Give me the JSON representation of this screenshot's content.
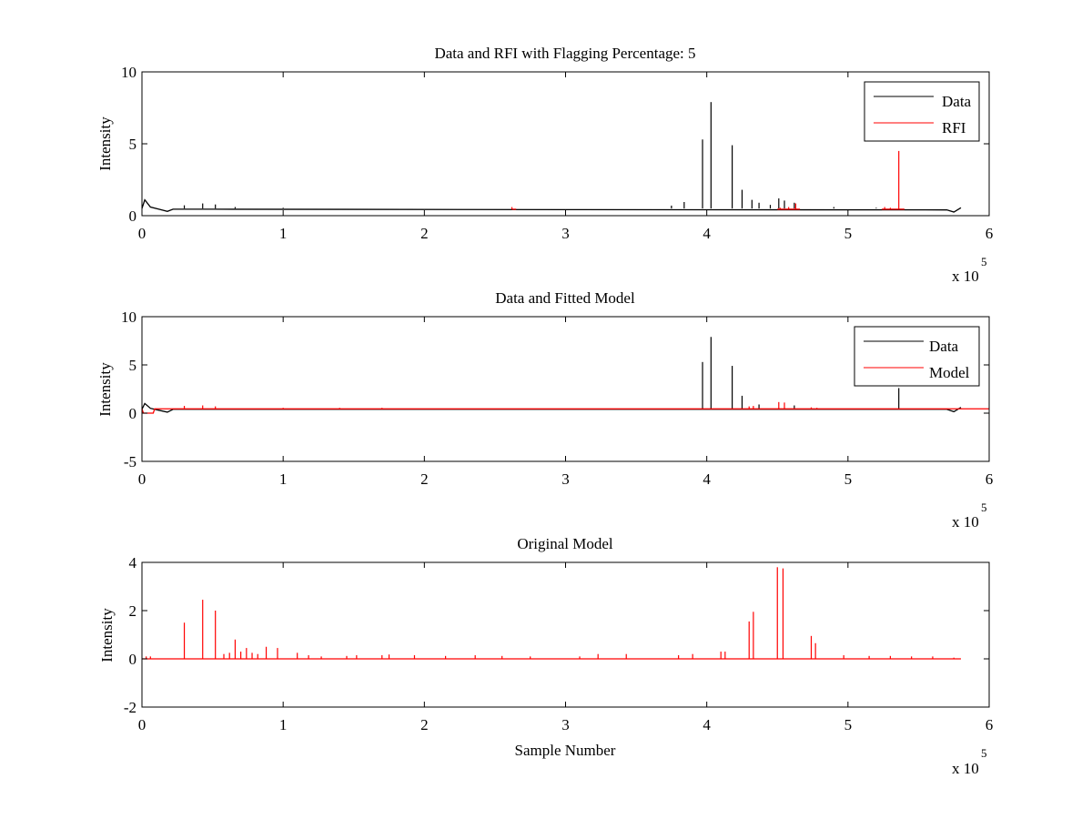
{
  "colors": {
    "data": "#000000",
    "rfi": "#ff0000",
    "model": "#ff0000",
    "axis": "#000000",
    "background": "#ffffff"
  },
  "chart_data": [
    {
      "type": "line",
      "title": "Data and RFI with Flagging Percentage: 5",
      "xlabel": "",
      "ylabel": "Intensity",
      "xlim": [
        0,
        600000
      ],
      "ylim": [
        0,
        10
      ],
      "xticks": [
        0,
        100000,
        200000,
        300000,
        400000,
        500000,
        600000
      ],
      "xtick_labels": [
        "0",
        "1",
        "2",
        "3",
        "4",
        "5",
        "6"
      ],
      "yticks": [
        0,
        5,
        10
      ],
      "ytick_labels": [
        "0",
        "5",
        "10"
      ],
      "x_exponent": {
        "base": "x 10",
        "power": "5"
      },
      "grid": false,
      "legend": "top-right",
      "series": [
        {
          "name": "Data",
          "color": "#000000",
          "baseline": 0.5,
          "drift": [
            [
              0,
              0.5
            ],
            [
              2000,
              1.1
            ],
            [
              6000,
              0.6
            ],
            [
              12000,
              0.45
            ],
            [
              18000,
              0.3
            ],
            [
              22000,
              0.45
            ],
            [
              50000,
              0.45
            ],
            [
              300000,
              0.42
            ],
            [
              570000,
              0.4
            ],
            [
              575000,
              0.25
            ],
            [
              580000,
              0.55
            ]
          ],
          "spikes": [
            [
              30000,
              0.72
            ],
            [
              43000,
              0.85
            ],
            [
              52000,
              0.78
            ],
            [
              66000,
              0.6
            ],
            [
              100000,
              0.55
            ],
            [
              190000,
              0.5
            ],
            [
              375000,
              0.7
            ],
            [
              384000,
              0.95
            ],
            [
              397000,
              5.3
            ],
            [
              403000,
              7.9
            ],
            [
              418000,
              4.9
            ],
            [
              425000,
              1.8
            ],
            [
              432000,
              1.1
            ],
            [
              437000,
              0.9
            ],
            [
              445000,
              0.75
            ],
            [
              451000,
              1.2
            ],
            [
              455000,
              1.05
            ],
            [
              462000,
              0.9
            ],
            [
              490000,
              0.6
            ],
            [
              520000,
              0.55
            ],
            [
              560000,
              0.5
            ]
          ]
        },
        {
          "name": "RFI",
          "color": "#ff0000",
          "baseline": 0.45,
          "drift": [],
          "spikes": [
            [
              262000,
              0.6
            ],
            [
              452000,
              0.55
            ],
            [
              458000,
              0.6
            ],
            [
              463000,
              0.85
            ],
            [
              526000,
              0.6
            ],
            [
              530000,
              0.55
            ],
            [
              536000,
              4.5
            ]
          ]
        }
      ]
    },
    {
      "type": "line",
      "title": "Data and Fitted Model",
      "xlabel": "",
      "ylabel": "Intensity",
      "xlim": [
        0,
        600000
      ],
      "ylim": [
        -5,
        10
      ],
      "xticks": [
        0,
        100000,
        200000,
        300000,
        400000,
        500000,
        600000
      ],
      "xtick_labels": [
        "0",
        "1",
        "2",
        "3",
        "4",
        "5",
        "6"
      ],
      "yticks": [
        -5,
        0,
        5,
        10
      ],
      "ytick_labels": [
        "-5",
        "0",
        "5",
        "10"
      ],
      "x_exponent": {
        "base": "x 10",
        "power": "5"
      },
      "grid": false,
      "legend": "top-right",
      "series": [
        {
          "name": "Data",
          "color": "#000000",
          "baseline": 0.4,
          "drift": [
            [
              0,
              0.4
            ],
            [
              2000,
              1.0
            ],
            [
              6000,
              0.5
            ],
            [
              12000,
              0.3
            ],
            [
              18000,
              0.1
            ],
            [
              22000,
              0.4
            ],
            [
              570000,
              0.4
            ],
            [
              575000,
              0.15
            ],
            [
              580000,
              0.6
            ]
          ],
          "spikes": [
            [
              397000,
              5.3
            ],
            [
              403000,
              7.9
            ],
            [
              418000,
              4.9
            ],
            [
              425000,
              1.8
            ],
            [
              437000,
              0.9
            ],
            [
              462000,
              0.8
            ],
            [
              536000,
              2.6
            ]
          ]
        },
        {
          "name": "Model",
          "color": "#ff0000",
          "baseline": 0.45,
          "drift": [
            [
              0,
              0.45
            ],
            [
              1000,
              0.0
            ],
            [
              8000,
              0.0
            ],
            [
              9000,
              0.45
            ],
            [
              600000,
              0.45
            ]
          ],
          "spikes": [
            [
              30000,
              0.75
            ],
            [
              43000,
              0.8
            ],
            [
              52000,
              0.7
            ],
            [
              100000,
              0.55
            ],
            [
              140000,
              0.55
            ],
            [
              170000,
              0.55
            ],
            [
              430000,
              0.7
            ],
            [
              433000,
              0.75
            ],
            [
              451000,
              1.15
            ],
            [
              455000,
              1.1
            ],
            [
              474000,
              0.6
            ],
            [
              478000,
              0.55
            ]
          ]
        }
      ]
    },
    {
      "type": "line",
      "title": "Original Model",
      "xlabel": "Sample Number",
      "ylabel": "Intensity",
      "xlim": [
        0,
        600000
      ],
      "ylim": [
        -2,
        4
      ],
      "xticks": [
        0,
        100000,
        200000,
        300000,
        400000,
        500000,
        600000
      ],
      "xtick_labels": [
        "0",
        "1",
        "2",
        "3",
        "4",
        "5",
        "6"
      ],
      "yticks": [
        -2,
        0,
        2,
        4
      ],
      "ytick_labels": [
        "-2",
        "0",
        "2",
        "4"
      ],
      "x_exponent": {
        "base": "x 10",
        "power": "5"
      },
      "grid": false,
      "legend": "",
      "series": [
        {
          "color": "#ff0000",
          "baseline": 0.0,
          "drift": [],
          "spikes": [
            [
              3000,
              0.1
            ],
            [
              6000,
              0.1
            ],
            [
              30000,
              1.5
            ],
            [
              43000,
              2.45
            ],
            [
              52000,
              2.0
            ],
            [
              58000,
              0.2
            ],
            [
              62000,
              0.25
            ],
            [
              66000,
              0.8
            ],
            [
              70000,
              0.3
            ],
            [
              74000,
              0.45
            ],
            [
              78000,
              0.25
            ],
            [
              82000,
              0.2
            ],
            [
              88000,
              0.5
            ],
            [
              96000,
              0.45
            ],
            [
              110000,
              0.25
            ],
            [
              118000,
              0.15
            ],
            [
              127000,
              0.1
            ],
            [
              145000,
              0.12
            ],
            [
              152000,
              0.15
            ],
            [
              170000,
              0.15
            ],
            [
              175000,
              0.18
            ],
            [
              193000,
              0.15
            ],
            [
              215000,
              0.12
            ],
            [
              236000,
              0.15
            ],
            [
              255000,
              0.12
            ],
            [
              275000,
              0.1
            ],
            [
              310000,
              0.1
            ],
            [
              323000,
              0.2
            ],
            [
              343000,
              0.2
            ],
            [
              380000,
              0.15
            ],
            [
              390000,
              0.2
            ],
            [
              410000,
              0.3
            ],
            [
              413000,
              0.3
            ],
            [
              430000,
              1.55
            ],
            [
              433000,
              1.95
            ],
            [
              450000,
              3.8
            ],
            [
              454000,
              3.75
            ],
            [
              474000,
              0.95
            ],
            [
              477000,
              0.65
            ],
            [
              497000,
              0.15
            ],
            [
              515000,
              0.12
            ],
            [
              530000,
              0.12
            ],
            [
              545000,
              0.1
            ],
            [
              560000,
              0.1
            ],
            [
              575000,
              0.05
            ]
          ]
        }
      ]
    }
  ]
}
